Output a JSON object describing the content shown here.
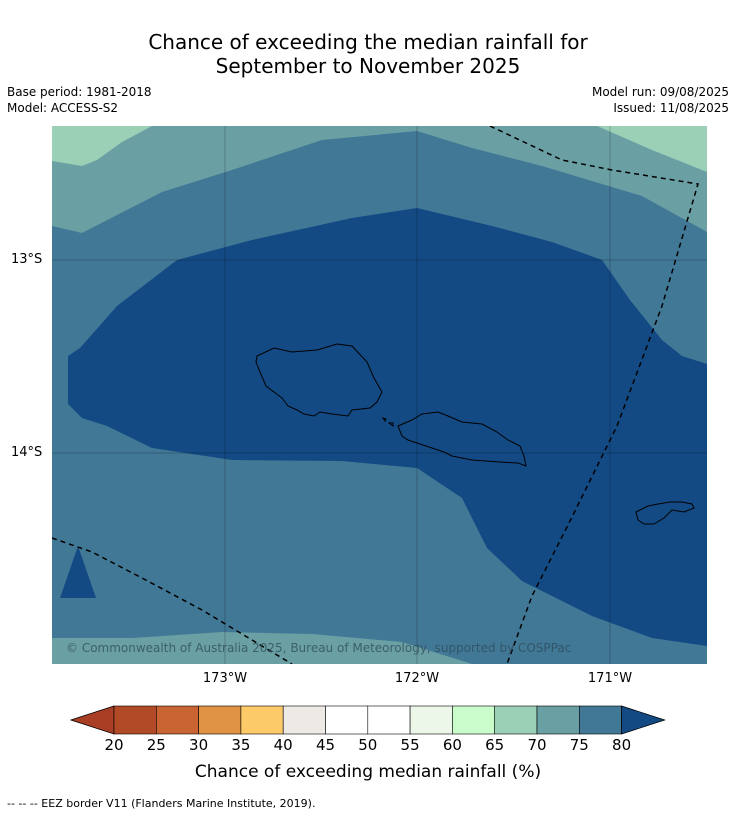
{
  "title_line1": "Chance of exceeding the median rainfall for",
  "title_line2": "September to November 2025",
  "meta": {
    "base_period": "Base period: 1981-2018",
    "model": "Model: ACCESS-S2",
    "model_run": "Model run: 09/08/2025",
    "issued": "Issued: 11/08/2025"
  },
  "map": {
    "latitude_labels": [
      "13°S",
      "14°S"
    ],
    "longitude_labels": [
      "173°W",
      "172°W",
      "171°W"
    ],
    "copyright": "© Commonwealth of Australia 2025, Bureau of Meteorology, supported by COSPPac"
  },
  "colorbar": {
    "ticks": [
      "20",
      "25",
      "30",
      "35",
      "40",
      "45",
      "50",
      "55",
      "60",
      "65",
      "70",
      "75",
      "80"
    ],
    "colors": [
      "#a93e25",
      "#b24a27",
      "#cb6433",
      "#e09245",
      "#fcca68",
      "#ede9e5",
      "#ffffff",
      "#ffffff",
      "#ecf7ea",
      "#cafccb",
      "#9bcfb6",
      "#6a9fa3",
      "#417896",
      "#134a84"
    ],
    "label": "Chance of exceeding median rainfall (%)"
  },
  "legend_note": "--  --  -- EEZ border V11 (Flanders Marine Institute, 2019)."
}
